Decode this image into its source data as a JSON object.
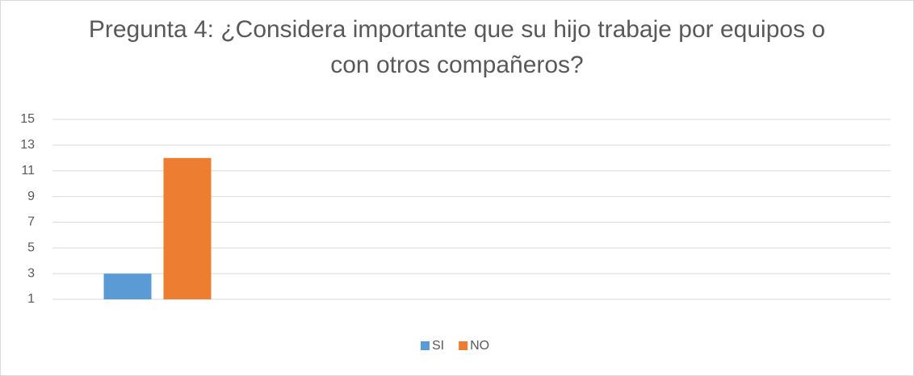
{
  "chart_data": {
    "type": "bar",
    "title": "Pregunta 4: ¿Considera importante que su hijo trabaje por equipos o con otros compañeros?",
    "categories": [
      null
    ],
    "series": [
      {
        "name": "SI",
        "color": "#5b9bd5",
        "values": [
          3
        ]
      },
      {
        "name": "NO",
        "color": "#ed7d31",
        "values": [
          12
        ]
      }
    ],
    "ylim": [
      1,
      15
    ],
    "yticks": [
      1,
      3,
      5,
      7,
      9,
      11,
      13,
      15
    ],
    "grid": true,
    "legend": "bottom"
  }
}
